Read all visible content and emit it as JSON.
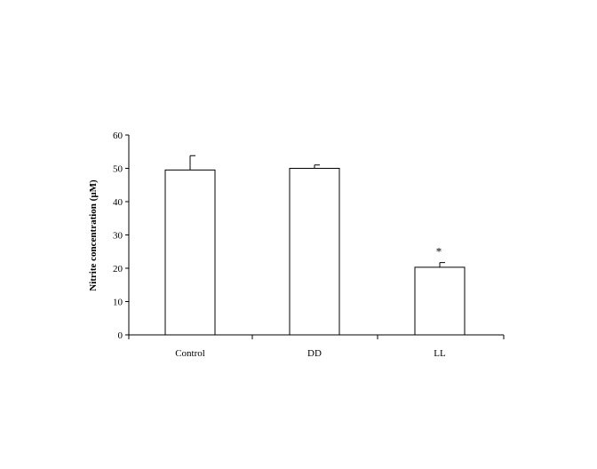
{
  "chart_data": {
    "type": "bar",
    "ylabel": "Nitrite concentration (µM)",
    "xlabel": "",
    "ylim": [
      0,
      60
    ],
    "yticks": [
      0,
      10,
      20,
      30,
      40,
      50,
      60
    ],
    "ytick_labels": [
      "0",
      "10",
      "20",
      "30",
      "40",
      "50",
      "60"
    ],
    "categories": [
      "Control",
      "DD",
      "LL"
    ],
    "values": [
      49.5,
      50.0,
      20.3
    ],
    "errors": [
      4.3,
      1.0,
      1.4
    ],
    "annotations": [
      "",
      "",
      "*"
    ],
    "bar_color": "#ffffff",
    "edge_color": "#000000",
    "grid": false,
    "legend": "none"
  }
}
